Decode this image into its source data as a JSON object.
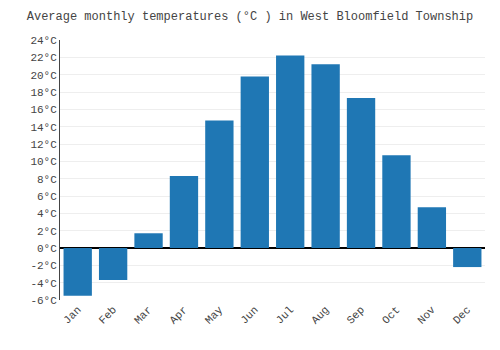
{
  "chart_data": {
    "type": "bar",
    "title": "Average monthly temperatures (°C ) in West Bloomfield Township",
    "categories": [
      "Jan",
      "Feb",
      "Mar",
      "Apr",
      "May",
      "Jun",
      "Jul",
      "Aug",
      "Sep",
      "Oct",
      "Nov",
      "Dec"
    ],
    "values": [
      -5.5,
      -3.7,
      1.7,
      8.3,
      14.7,
      19.8,
      22.2,
      21.2,
      17.3,
      10.7,
      4.7,
      -2.2
    ],
    "ylim": [
      -6,
      24
    ],
    "yticks": [
      {
        "value": -6,
        "label": "-6°C"
      },
      {
        "value": -4,
        "label": "-4°C"
      },
      {
        "value": -2,
        "label": "-2°C"
      },
      {
        "value": 0,
        "label": "0°C"
      },
      {
        "value": 2,
        "label": "2°C"
      },
      {
        "value": 4,
        "label": "4°C"
      },
      {
        "value": 6,
        "label": "6°C"
      },
      {
        "value": 8,
        "label": "8°C"
      },
      {
        "value": 10,
        "label": "10°C"
      },
      {
        "value": 12,
        "label": "12°C"
      },
      {
        "value": 14,
        "label": "14°C"
      },
      {
        "value": 16,
        "label": "16°C"
      },
      {
        "value": 18,
        "label": "18°C"
      },
      {
        "value": 20,
        "label": "20°C"
      },
      {
        "value": 22,
        "label": "22°C"
      },
      {
        "value": 24,
        "label": "24°C"
      }
    ],
    "grid": true
  }
}
